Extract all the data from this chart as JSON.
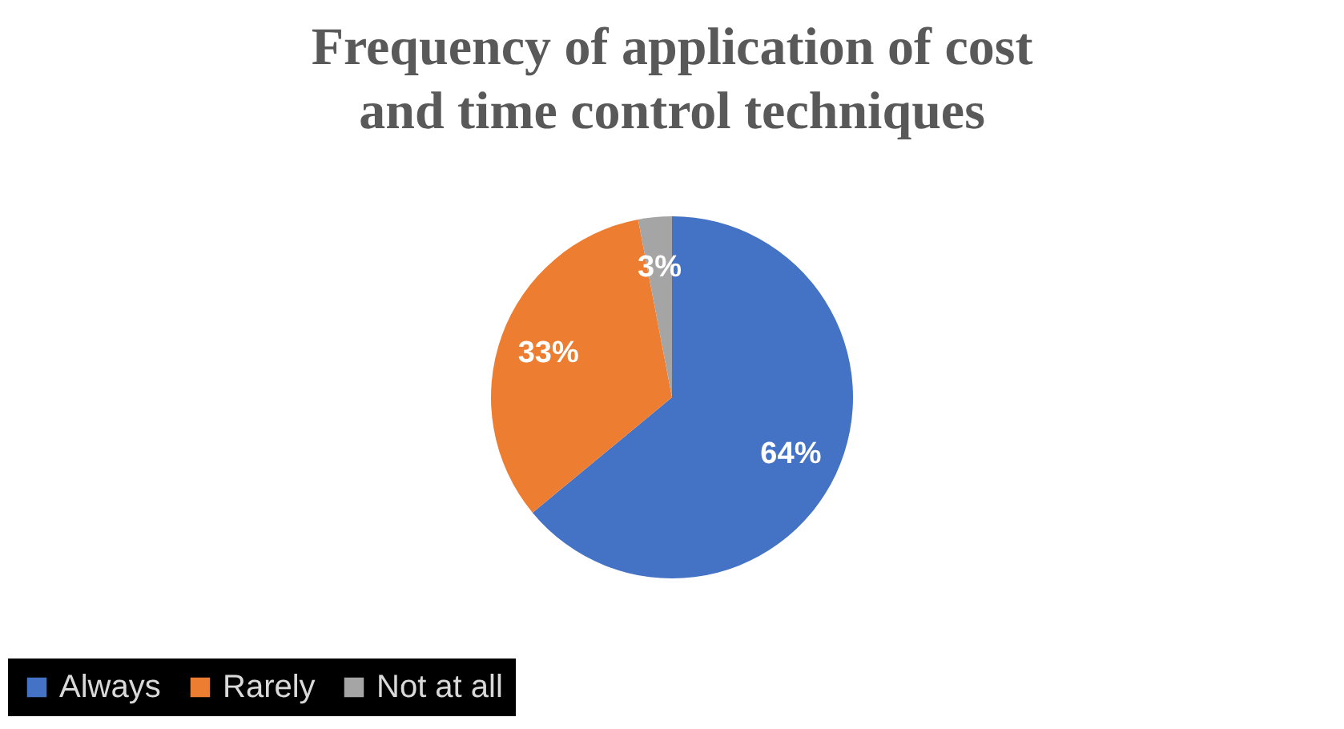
{
  "chart_data": {
    "type": "pie",
    "title": "Frequency of application of cost and time control techniques",
    "categories": [
      "Always",
      "Rarely",
      "Not at all"
    ],
    "values": [
      64,
      33,
      3
    ],
    "colors": [
      "#4472c4",
      "#ed7d31",
      "#a5a5a5"
    ],
    "value_labels": [
      "64%",
      "33%",
      "3%"
    ],
    "legend": "bottom"
  }
}
